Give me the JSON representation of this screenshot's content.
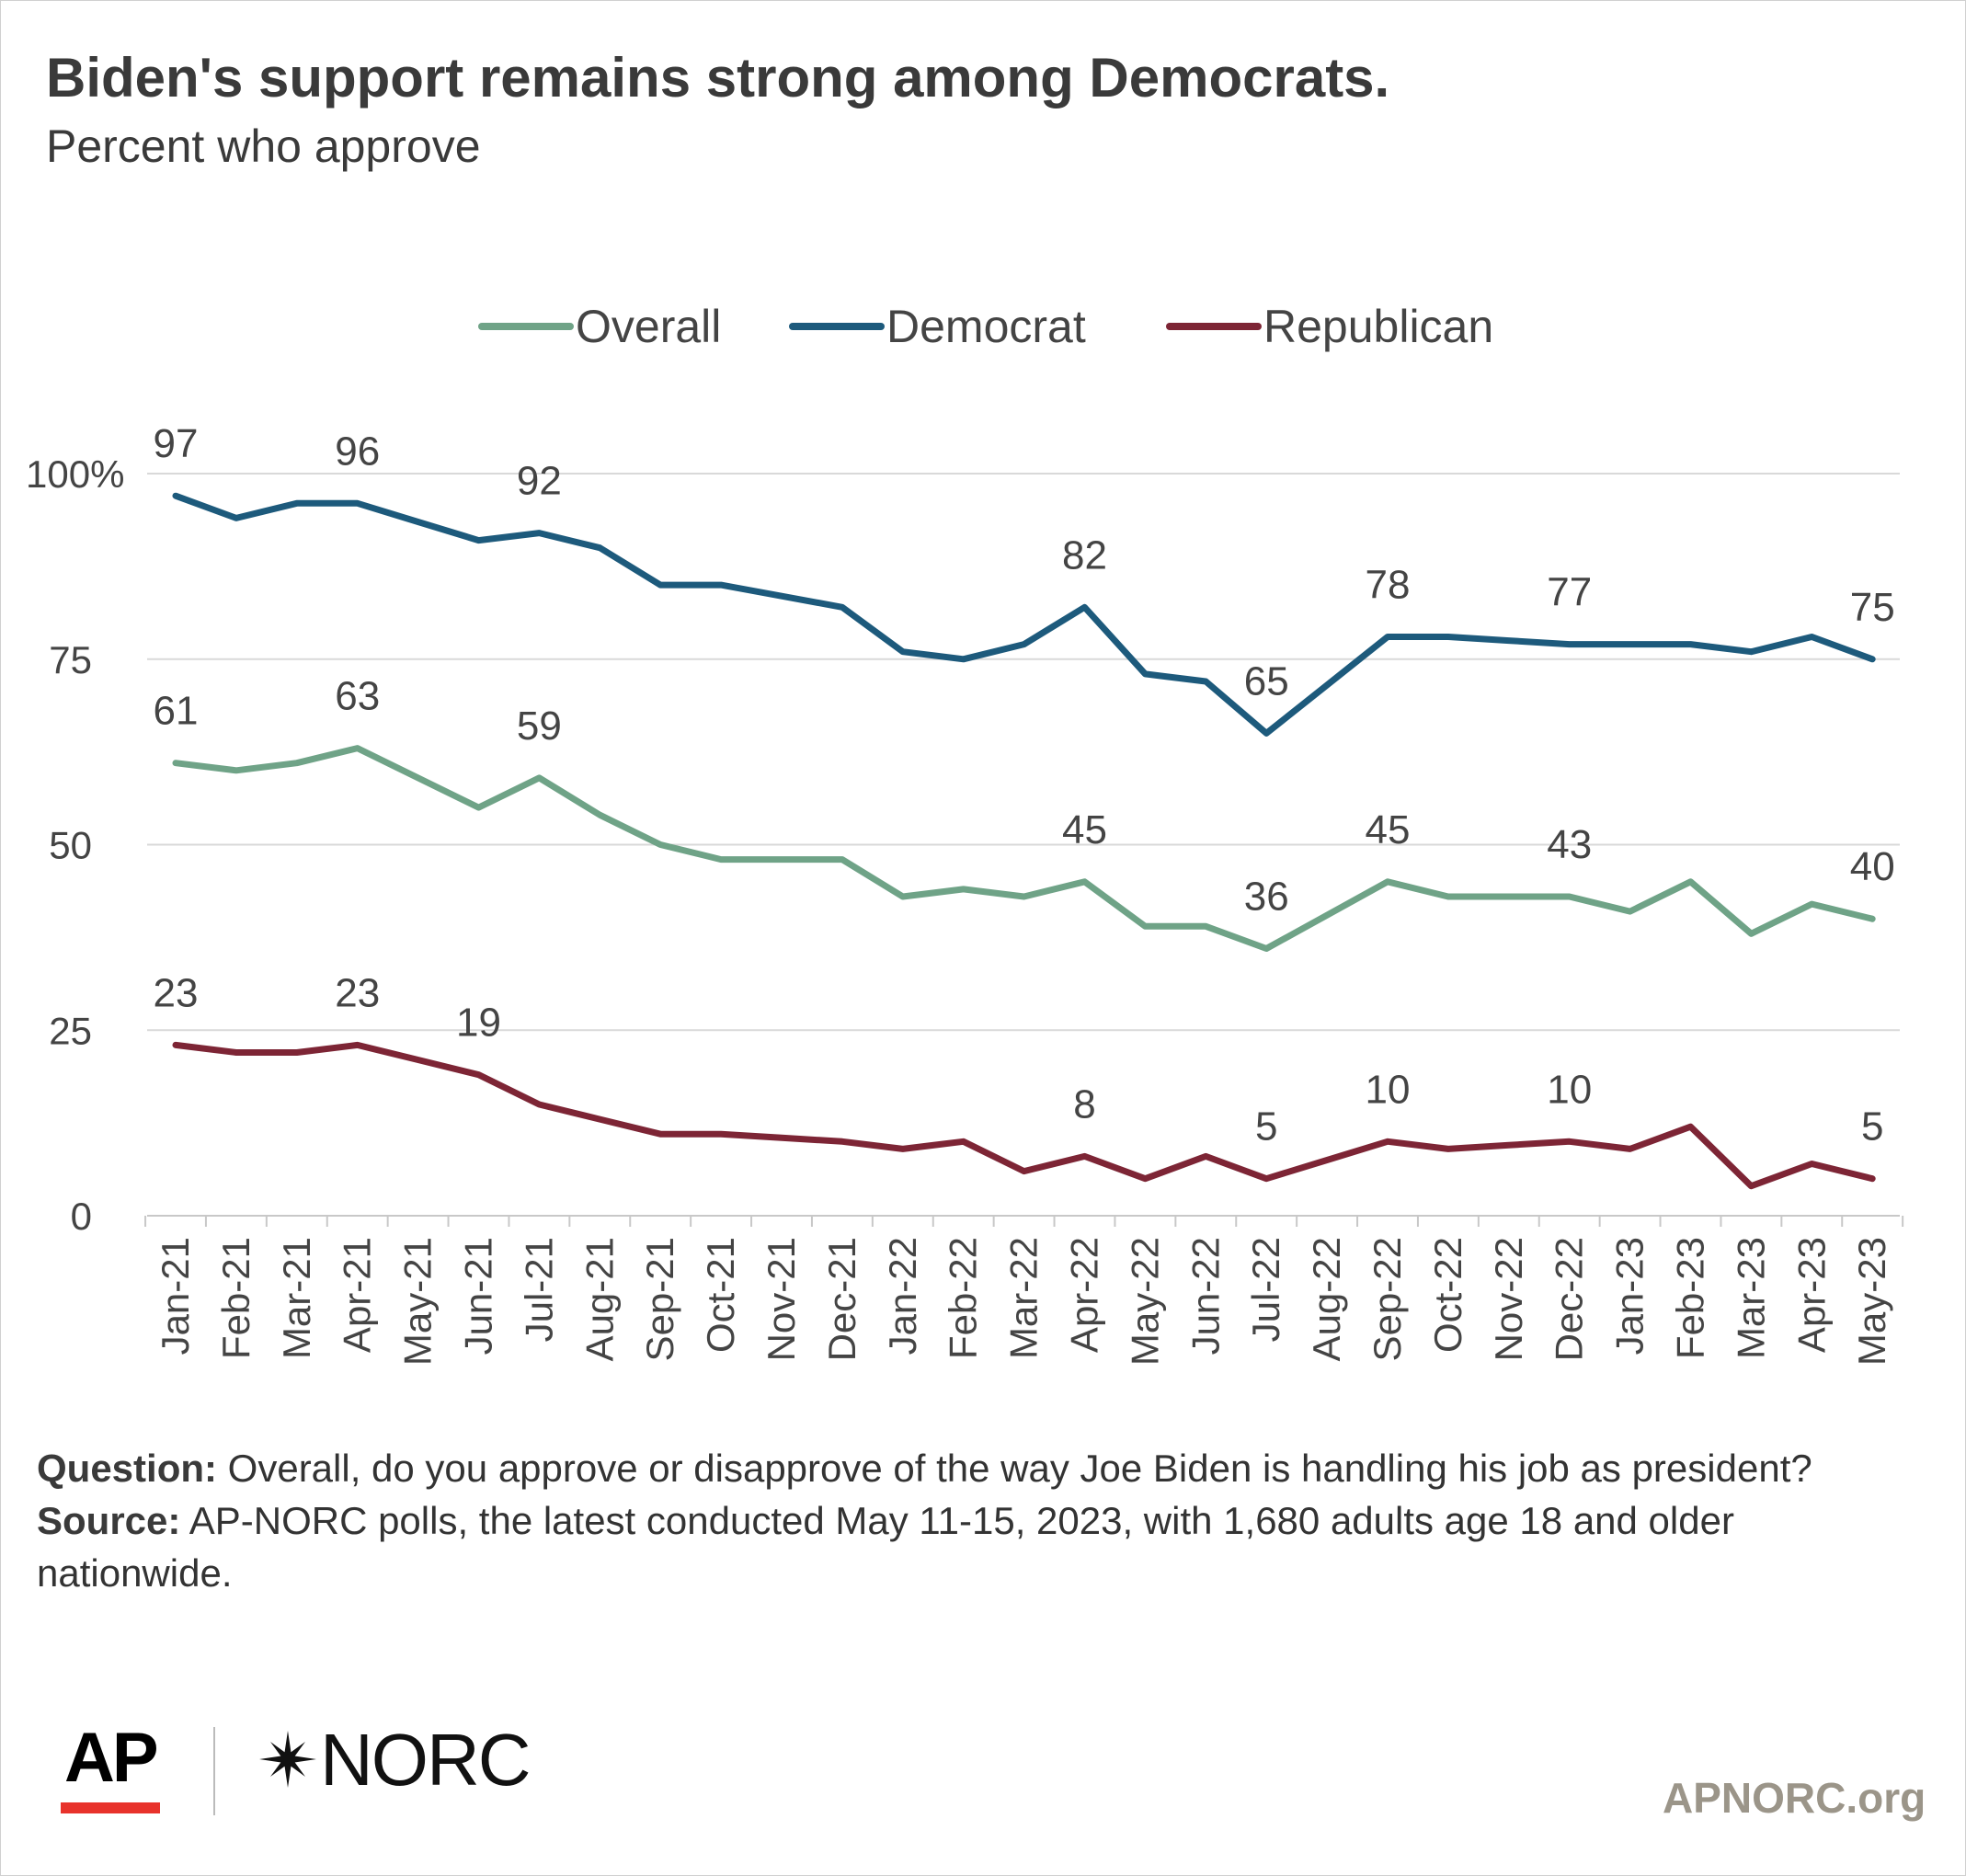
{
  "chart_data": {
    "type": "line",
    "title": "Biden's support remains strong among Democrats.",
    "subtitle": "Percent who approve",
    "categories": [
      "Jan-21",
      "Feb-21",
      "Mar-21",
      "Apr-21",
      "May-21",
      "Jun-21",
      "Jul-21",
      "Aug-21",
      "Sep-21",
      "Oct-21",
      "Nov-21",
      "Dec-21",
      "Jan-22",
      "Feb-22",
      "Mar-22",
      "Apr-22",
      "May-22",
      "Jun-22",
      "Jul-22",
      "Aug-22",
      "Sep-22",
      "Oct-22",
      "Nov-22",
      "Dec-22",
      "Jan-23",
      "Feb-23",
      "Mar-23",
      "Apr-23",
      "May-23"
    ],
    "yticks": [
      {
        "value": 100,
        "label": "100%"
      },
      {
        "value": 75,
        "label": "75"
      },
      {
        "value": 50,
        "label": "50"
      },
      {
        "value": 25,
        "label": "25"
      },
      {
        "value": 0,
        "label": "0"
      }
    ],
    "ylim": [
      0,
      100
    ],
    "grid": true,
    "legend_position": "top-center",
    "series": [
      {
        "name": "Overall",
        "color": "#6fa387",
        "values": [
          61,
          60,
          61,
          63,
          59,
          55,
          59,
          54,
          50,
          48,
          48,
          48,
          43,
          44,
          43,
          45,
          39,
          39,
          36,
          40.5,
          45,
          43,
          43,
          43,
          41,
          45,
          38,
          42,
          40
        ],
        "labels": [
          {
            "i": 0,
            "text": "61"
          },
          {
            "i": 3,
            "text": "63"
          },
          {
            "i": 6,
            "text": "59"
          },
          {
            "i": 15,
            "text": "45"
          },
          {
            "i": 18,
            "text": "36"
          },
          {
            "i": 20,
            "text": "45"
          },
          {
            "i": 23,
            "text": "43"
          },
          {
            "i": 28,
            "text": "40"
          }
        ]
      },
      {
        "name": "Democrat",
        "color": "#1d5a7c",
        "values": [
          97,
          94,
          96,
          96,
          93.5,
          91,
          92,
          90,
          85,
          85,
          83.5,
          82,
          76,
          75,
          77,
          82,
          73,
          72,
          65,
          71.5,
          78,
          78,
          77.5,
          77,
          77,
          77,
          76,
          78,
          75
        ],
        "labels": [
          {
            "i": 0,
            "text": "97"
          },
          {
            "i": 3,
            "text": "96"
          },
          {
            "i": 6,
            "text": "92"
          },
          {
            "i": 15,
            "text": "82"
          },
          {
            "i": 18,
            "text": "65"
          },
          {
            "i": 20,
            "text": "78"
          },
          {
            "i": 23,
            "text": "77"
          },
          {
            "i": 28,
            "text": "75"
          }
        ]
      },
      {
        "name": "Republican",
        "color": "#7d2535",
        "values": [
          23,
          22,
          22,
          23,
          21,
          19,
          15,
          13,
          11,
          11,
          10.5,
          10,
          9,
          10,
          6,
          8,
          5,
          8,
          5,
          7.5,
          10,
          9,
          9.5,
          10,
          9,
          12,
          4,
          7,
          5
        ],
        "labels": [
          {
            "i": 0,
            "text": "23"
          },
          {
            "i": 3,
            "text": "23"
          },
          {
            "i": 5,
            "text": "19"
          },
          {
            "i": 15,
            "text": "8"
          },
          {
            "i": 18,
            "text": "5"
          },
          {
            "i": 20,
            "text": "10"
          },
          {
            "i": 23,
            "text": "10"
          },
          {
            "i": 28,
            "text": "5"
          }
        ]
      }
    ]
  },
  "footnote": {
    "question_label": "Question:",
    "question_text": " Overall, do you approve or disapprove of the way Joe Biden is handling his job as president?",
    "source_label": "Source:",
    "source_text": " AP-NORC polls, the latest conducted May 11-15, 2023, with 1,680 adults age 18 and older nationwide."
  },
  "logos": {
    "ap": "AP",
    "ap_bar_color": "#e8322b",
    "norc": "NORC",
    "site": "APNORC.org",
    "site_color": "#9b9589"
  }
}
